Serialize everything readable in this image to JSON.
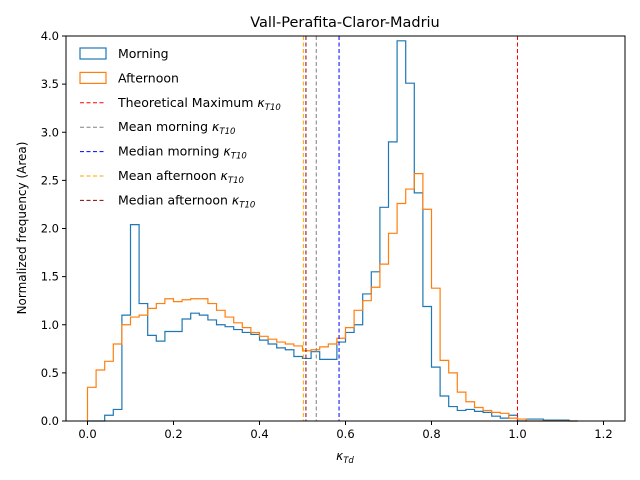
{
  "chart_data": {
    "type": "histogram",
    "title": "Vall-Perafita-Claror-Madriu",
    "xlabel": "κ",
    "xlabel_sub": "Td",
    "ylabel": "Normalized frequency (Area)",
    "xlim": [
      -0.05,
      1.25
    ],
    "ylim": [
      0,
      4.0
    ],
    "xticks": [
      "0.0",
      "0.2",
      "0.4",
      "0.6",
      "0.8",
      "1.0",
      "1.2"
    ],
    "yticks": [
      "0.0",
      "0.5",
      "1.0",
      "1.5",
      "2.0",
      "2.5",
      "3.0",
      "3.5",
      "4.0"
    ],
    "bin_start": 0.0,
    "bin_width": 0.02,
    "series": [
      {
        "name": "Morning",
        "color": "#1f77b4",
        "values": [
          0.0,
          0.0,
          0.06,
          0.12,
          1.1,
          2.04,
          1.22,
          0.89,
          0.83,
          0.93,
          0.93,
          1.06,
          1.12,
          1.1,
          1.05,
          1.0,
          0.98,
          0.95,
          0.92,
          0.9,
          0.84,
          0.8,
          0.76,
          0.74,
          0.67,
          0.65,
          0.72,
          0.64,
          0.64,
          0.82,
          0.92,
          1.0,
          1.32,
          1.55,
          2.22,
          2.9,
          3.95,
          3.51,
          2.37,
          1.19,
          0.56,
          0.26,
          0.15,
          0.11,
          0.12,
          0.1,
          0.09,
          0.05,
          0.03,
          0.06,
          0.0,
          0.02,
          0.02,
          0.01,
          0.01,
          0.01,
          0.0
        ]
      },
      {
        "name": "Afternoon",
        "color": "#ff7f0e",
        "values": [
          0.35,
          0.53,
          0.62,
          0.8,
          1.0,
          1.08,
          1.1,
          1.17,
          1.22,
          1.27,
          1.24,
          1.26,
          1.27,
          1.27,
          1.22,
          1.15,
          1.08,
          1.02,
          0.97,
          0.92,
          0.88,
          0.85,
          0.82,
          0.8,
          0.78,
          0.73,
          0.74,
          0.77,
          0.8,
          0.86,
          0.97,
          1.15,
          1.25,
          1.39,
          1.63,
          1.95,
          2.26,
          2.41,
          2.57,
          2.2,
          1.38,
          0.63,
          0.5,
          0.3,
          0.2,
          0.14,
          0.11,
          0.09,
          0.08,
          0.03,
          0.02,
          0.0,
          0.0,
          0.0,
          0.0,
          0.0,
          0.0
        ]
      }
    ],
    "vlines": [
      {
        "name": "Theoretical Maximum",
        "label_sub": "T10",
        "x": 1.0,
        "color": "#ff0000"
      },
      {
        "name": "Mean morning",
        "label_sub": "T10",
        "x": 0.532,
        "color": "#808080"
      },
      {
        "name": "Median morning",
        "label_sub": "T10",
        "x": 0.585,
        "color": "#0000ff"
      },
      {
        "name": "Mean afternoon",
        "label_sub": "T10",
        "x": 0.502,
        "color": "#ffa500"
      },
      {
        "name": "Median afternoon",
        "label_sub": "T10",
        "x": 0.508,
        "color": "#8b0000"
      }
    ],
    "kappa_symbol": "κ",
    "legend_location": "upper-left",
    "grid": false
  }
}
